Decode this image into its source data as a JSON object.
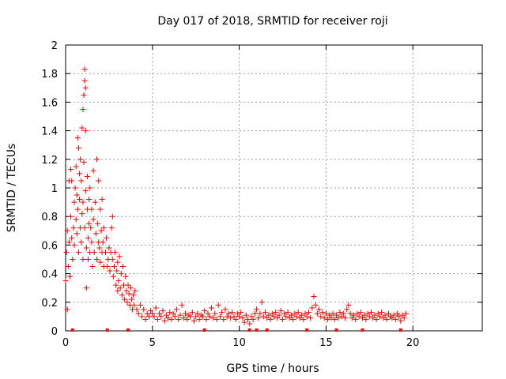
{
  "chart_data": {
    "type": "scatter",
    "title": "Day 017 of 2018, SRMTID for receiver roji",
    "xlabel": "GPS time / hours",
    "ylabel": "SRMTID / TECUs",
    "xlim": [
      0,
      24
    ],
    "ylim": [
      0,
      2
    ],
    "x_ticks": [
      "0",
      "5",
      "10",
      "15",
      "20"
    ],
    "y_ticks": [
      "0",
      "0.2",
      "0.4",
      "0.6",
      "0.8",
      "1",
      "1.2",
      "1.4",
      "1.6",
      "1.8",
      "2"
    ],
    "grid": true,
    "marker": "+",
    "series": [
      {
        "name": "SRMTID",
        "color": "#ff0000",
        "points": [
          [
            0.0,
            0.35
          ],
          [
            0.05,
            0.55
          ],
          [
            0.1,
            0.7
          ],
          [
            0.1,
            0.15
          ],
          [
            0.15,
            0.45
          ],
          [
            0.2,
            0.62
          ],
          [
            0.2,
            1.05
          ],
          [
            0.25,
            0.38
          ],
          [
            0.3,
            1.13
          ],
          [
            0.3,
            0.8
          ],
          [
            0.35,
            0.65
          ],
          [
            0.35,
            1.05
          ],
          [
            0.4,
            0.5
          ],
          [
            0.45,
            0.72
          ],
          [
            0.5,
            0.9
          ],
          [
            0.5,
            0.6
          ],
          [
            0.55,
            1.0
          ],
          [
            0.6,
            0.78
          ],
          [
            0.6,
            1.15
          ],
          [
            0.65,
            0.95
          ],
          [
            0.65,
            0.68
          ],
          [
            0.7,
            1.35
          ],
          [
            0.7,
            0.85
          ],
          [
            0.75,
            1.28
          ],
          [
            0.75,
            0.55
          ],
          [
            0.8,
            1.1
          ],
          [
            0.8,
            0.92
          ],
          [
            0.85,
            0.72
          ],
          [
            0.85,
            1.2
          ],
          [
            0.9,
            0.62
          ],
          [
            0.9,
            1.05
          ],
          [
            0.95,
            0.82
          ],
          [
            0.95,
            1.42
          ],
          [
            1.0,
            1.55
          ],
          [
            1.0,
            0.9
          ],
          [
            1.0,
            0.5
          ],
          [
            1.05,
            1.65
          ],
          [
            1.05,
            1.18
          ],
          [
            1.1,
            1.83
          ],
          [
            1.1,
            1.75
          ],
          [
            1.1,
            0.72
          ],
          [
            1.15,
            1.7
          ],
          [
            1.15,
            1.4
          ],
          [
            1.15,
            0.98
          ],
          [
            1.2,
            0.58
          ],
          [
            1.2,
            0.3
          ],
          [
            1.25,
            0.85
          ],
          [
            1.25,
            1.08
          ],
          [
            1.3,
            0.65
          ],
          [
            1.3,
            0.5
          ],
          [
            1.35,
            0.75
          ],
          [
            1.35,
            0.92
          ],
          [
            1.4,
            0.55
          ],
          [
            1.4,
            1.0
          ],
          [
            1.45,
            0.72
          ],
          [
            1.5,
            0.62
          ],
          [
            1.5,
            0.85
          ],
          [
            1.55,
            0.45
          ],
          [
            1.6,
            0.78
          ],
          [
            1.6,
            1.12
          ],
          [
            1.65,
            0.55
          ],
          [
            1.7,
            0.9
          ],
          [
            1.75,
            0.68
          ],
          [
            1.8,
            1.2
          ],
          [
            1.8,
            0.5
          ],
          [
            1.85,
            0.75
          ],
          [
            1.9,
            0.62
          ],
          [
            1.9,
            1.05
          ],
          [
            1.95,
            0.58
          ],
          [
            2.0,
            0.85
          ],
          [
            2.0,
            0.48
          ],
          [
            2.05,
            0.7
          ],
          [
            2.1,
            0.55
          ],
          [
            2.1,
            0.92
          ],
          [
            2.15,
            0.62
          ],
          [
            2.2,
            0.45
          ],
          [
            2.2,
            0.72
          ],
          [
            2.3,
            0.55
          ],
          [
            2.35,
            0.65
          ],
          [
            2.4,
            0.45
          ],
          [
            2.45,
            0.5
          ],
          [
            2.5,
            0.58
          ],
          [
            2.55,
            0.42
          ],
          [
            2.6,
            0.55
          ],
          [
            2.65,
            0.72
          ],
          [
            2.7,
            0.5
          ],
          [
            2.7,
            0.8
          ],
          [
            2.75,
            0.38
          ],
          [
            2.8,
            0.45
          ],
          [
            2.85,
            0.55
          ],
          [
            2.9,
            0.32
          ],
          [
            2.95,
            0.42
          ],
          [
            3.0,
            0.48
          ],
          [
            3.0,
            0.28
          ],
          [
            3.05,
            0.35
          ],
          [
            3.1,
            0.52
          ],
          [
            3.15,
            0.3
          ],
          [
            3.2,
            0.4
          ],
          [
            3.25,
            0.25
          ],
          [
            3.3,
            0.45
          ],
          [
            3.35,
            0.32
          ],
          [
            3.4,
            0.22
          ],
          [
            3.45,
            0.38
          ],
          [
            3.5,
            0.28
          ],
          [
            3.55,
            0.2
          ],
          [
            3.6,
            0.32
          ],
          [
            3.65,
            0.26
          ],
          [
            3.7,
            0.18
          ],
          [
            3.75,
            0.3
          ],
          [
            3.8,
            0.22
          ],
          [
            3.85,
            0.15
          ],
          [
            3.9,
            0.25
          ],
          [
            3.95,
            0.18
          ],
          [
            4.0,
            0.28
          ],
          [
            4.1,
            0.15
          ],
          [
            4.2,
            0.12
          ],
          [
            4.3,
            0.18
          ],
          [
            4.4,
            0.1
          ],
          [
            4.5,
            0.15
          ],
          [
            4.6,
            0.08
          ],
          [
            4.7,
            0.12
          ],
          [
            4.8,
            0.1
          ],
          [
            4.9,
            0.14
          ],
          [
            5.0,
            0.12
          ],
          [
            5.1,
            0.1
          ],
          [
            5.2,
            0.16
          ],
          [
            5.3,
            0.08
          ],
          [
            5.4,
            0.12
          ],
          [
            5.5,
            0.1
          ],
          [
            5.6,
            0.14
          ],
          [
            5.7,
            0.07
          ],
          [
            5.8,
            0.11
          ],
          [
            5.9,
            0.09
          ],
          [
            6.0,
            0.13
          ],
          [
            6.1,
            0.08
          ],
          [
            6.2,
            0.12
          ],
          [
            6.3,
            0.1
          ],
          [
            6.4,
            0.15
          ],
          [
            6.5,
            0.08
          ],
          [
            6.6,
            0.11
          ],
          [
            6.7,
            0.18
          ],
          [
            6.8,
            0.09
          ],
          [
            6.9,
            0.12
          ],
          [
            7.0,
            0.08
          ],
          [
            7.1,
            0.11
          ],
          [
            7.2,
            0.1
          ],
          [
            7.3,
            0.13
          ],
          [
            7.4,
            0.07
          ],
          [
            7.5,
            0.1
          ],
          [
            7.6,
            0.12
          ],
          [
            7.7,
            0.08
          ],
          [
            7.8,
            0.11
          ],
          [
            7.9,
            0.1
          ],
          [
            8.0,
            0.14
          ],
          [
            8.1,
            0.08
          ],
          [
            8.2,
            0.12
          ],
          [
            8.3,
            0.1
          ],
          [
            8.4,
            0.16
          ],
          [
            8.5,
            0.09
          ],
          [
            8.6,
            0.12
          ],
          [
            8.7,
            0.08
          ],
          [
            8.8,
            0.18
          ],
          [
            8.9,
            0.1
          ],
          [
            9.0,
            0.13
          ],
          [
            9.1,
            0.08
          ],
          [
            9.2,
            0.15
          ],
          [
            9.3,
            0.1
          ],
          [
            9.4,
            0.12
          ],
          [
            9.5,
            0.09
          ],
          [
            9.6,
            0.13
          ],
          [
            9.7,
            0.1
          ],
          [
            9.8,
            0.08
          ],
          [
            9.9,
            0.12
          ],
          [
            10.0,
            0.1
          ],
          [
            10.1,
            0.13
          ],
          [
            10.2,
            0.09
          ],
          [
            10.3,
            0.06
          ],
          [
            10.4,
            0.11
          ],
          [
            10.5,
            0.08
          ],
          [
            10.6,
            0.05
          ],
          [
            10.7,
            0.1
          ],
          [
            10.8,
            0.08
          ],
          [
            10.9,
            0.12
          ],
          [
            11.0,
            0.15
          ],
          [
            11.1,
            0.09
          ],
          [
            11.2,
            0.12
          ],
          [
            11.3,
            0.2
          ],
          [
            11.4,
            0.1
          ],
          [
            11.5,
            0.13
          ],
          [
            11.6,
            0.09
          ],
          [
            11.7,
            0.11
          ],
          [
            11.8,
            0.08
          ],
          [
            11.9,
            0.12
          ],
          [
            12.0,
            0.1
          ],
          [
            12.1,
            0.13
          ],
          [
            12.2,
            0.09
          ],
          [
            12.3,
            0.11
          ],
          [
            12.4,
            0.14
          ],
          [
            12.5,
            0.08
          ],
          [
            12.6,
            0.12
          ],
          [
            12.7,
            0.1
          ],
          [
            12.8,
            0.13
          ],
          [
            12.9,
            0.09
          ],
          [
            13.0,
            0.11
          ],
          [
            13.1,
            0.08
          ],
          [
            13.2,
            0.12
          ],
          [
            13.3,
            0.1
          ],
          [
            13.4,
            0.13
          ],
          [
            13.5,
            0.09
          ],
          [
            13.6,
            0.11
          ],
          [
            13.7,
            0.08
          ],
          [
            13.8,
            0.12
          ],
          [
            13.9,
            0.1
          ],
          [
            14.0,
            0.13
          ],
          [
            14.1,
            0.09
          ],
          [
            14.2,
            0.16
          ],
          [
            14.3,
            0.24
          ],
          [
            14.4,
            0.18
          ],
          [
            14.5,
            0.12
          ],
          [
            14.6,
            0.15
          ],
          [
            14.7,
            0.1
          ],
          [
            14.8,
            0.13
          ],
          [
            14.9,
            0.09
          ],
          [
            15.0,
            0.12
          ],
          [
            15.1,
            0.08
          ],
          [
            15.2,
            0.11
          ],
          [
            15.3,
            0.09
          ],
          [
            15.4,
            0.12
          ],
          [
            15.5,
            0.08
          ],
          [
            15.6,
            0.11
          ],
          [
            15.7,
            0.09
          ],
          [
            15.8,
            0.13
          ],
          [
            15.9,
            0.1
          ],
          [
            16.0,
            0.12
          ],
          [
            16.1,
            0.09
          ],
          [
            16.2,
            0.15
          ],
          [
            16.3,
            0.18
          ],
          [
            16.4,
            0.12
          ],
          [
            16.5,
            0.09
          ],
          [
            16.6,
            0.11
          ],
          [
            16.7,
            0.08
          ],
          [
            16.8,
            0.12
          ],
          [
            16.9,
            0.1
          ],
          [
            17.0,
            0.13
          ],
          [
            17.1,
            0.09
          ],
          [
            17.2,
            0.11
          ],
          [
            17.3,
            0.08
          ],
          [
            17.4,
            0.12
          ],
          [
            17.5,
            0.1
          ],
          [
            17.6,
            0.13
          ],
          [
            17.7,
            0.09
          ],
          [
            17.8,
            0.11
          ],
          [
            17.9,
            0.08
          ],
          [
            18.0,
            0.12
          ],
          [
            18.1,
            0.1
          ],
          [
            18.2,
            0.13
          ],
          [
            18.3,
            0.09
          ],
          [
            18.4,
            0.11
          ],
          [
            18.5,
            0.08
          ],
          [
            18.6,
            0.12
          ],
          [
            18.7,
            0.1
          ],
          [
            18.8,
            0.09
          ],
          [
            18.9,
            0.11
          ],
          [
            19.0,
            0.08
          ],
          [
            19.1,
            0.12
          ],
          [
            19.2,
            0.1
          ],
          [
            19.3,
            0.07
          ],
          [
            19.4,
            0.11
          ],
          [
            19.5,
            0.09
          ],
          [
            19.6,
            0.12
          ]
        ]
      }
    ],
    "baseline_points": [
      0.4,
      2.4,
      3.6,
      8.0,
      10.6,
      11.0,
      11.6,
      13.9,
      15.6,
      17.1,
      19.3
    ]
  }
}
